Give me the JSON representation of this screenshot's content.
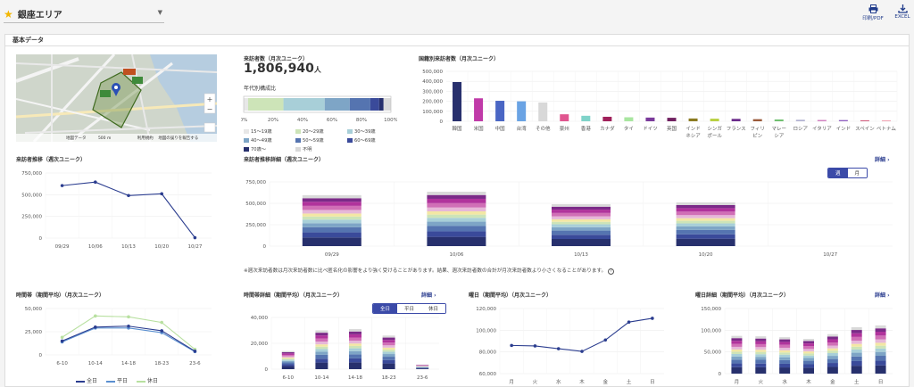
{
  "header": {
    "area": "銀座エリア",
    "print_label": "印刷/PDF",
    "excel_label": "EXCEL"
  },
  "section_title": "基本データ",
  "map": {
    "labels": [
      "地図データ",
      "500 m",
      "利用規約",
      "地図の誤りを報告する"
    ]
  },
  "visitors": {
    "label": "来訪者数（月次ユニーク）",
    "value": "1,806,940",
    "unit": "人",
    "age_title": "年代別構成比",
    "age_axis": [
      "0%",
      "20%",
      "40%",
      "60%",
      "80%",
      "100%"
    ],
    "age_segments": [
      {
        "label": "15〜19歳",
        "share": 3,
        "color": "#e7e7e7"
      },
      {
        "label": "20〜29歳",
        "share": 24,
        "color": "#cde4b8"
      },
      {
        "label": "30〜39歳",
        "share": 28,
        "color": "#a8cfd8"
      },
      {
        "label": "40〜49歳",
        "share": 17,
        "color": "#7ea5c6"
      },
      {
        "label": "50〜59歳",
        "share": 14,
        "color": "#5574b0"
      },
      {
        "label": "60〜69歳",
        "share": 6,
        "color": "#3a4a9a"
      },
      {
        "label": "70歳〜",
        "share": 3,
        "color": "#27306d"
      },
      {
        "label": "不明",
        "share": 5,
        "color": "#d9d9d9"
      }
    ]
  },
  "nationality": {
    "label": "国籍別来訪者数（月次ユニーク）",
    "y_ticks": [
      "500,000",
      "400,000",
      "300,000",
      "200,000",
      "100,000",
      "0"
    ],
    "ymax": 500000,
    "bars": [
      {
        "name": "韓国",
        "value": 393000,
        "color": "#28306d"
      },
      {
        "name": "米国",
        "value": 230000,
        "color": "#c03aa8"
      },
      {
        "name": "中国",
        "value": 205000,
        "color": "#4a66c4"
      },
      {
        "name": "台湾",
        "value": 200000,
        "color": "#6aa3e4"
      },
      {
        "name": "その他",
        "value": 188000,
        "color": "#d8d8d8"
      },
      {
        "name": "豪州",
        "value": 70000,
        "color": "#e0558f"
      },
      {
        "name": "香港",
        "value": 55000,
        "color": "#7fd3c9"
      },
      {
        "name": "カナダ",
        "value": 45000,
        "color": "#a0205a"
      },
      {
        "name": "タイ",
        "value": 40000,
        "color": "#a8e6a0"
      },
      {
        "name": "ドイツ",
        "value": 37000,
        "color": "#7a3a9a"
      },
      {
        "name": "英国",
        "value": 35000,
        "color": "#702060"
      },
      {
        "name": "インドネシア",
        "value": 28000,
        "color": "#8a7a20"
      },
      {
        "name": "シンガポール",
        "value": 26000,
        "color": "#b8d040"
      },
      {
        "name": "フランス",
        "value": 24000,
        "color": "#6a2a8a"
      },
      {
        "name": "フィリピン",
        "value": 21000,
        "color": "#9a5a3a"
      },
      {
        "name": "マレーシア",
        "value": 18000,
        "color": "#70c070"
      },
      {
        "name": "ロシア",
        "value": 15000,
        "color": "#b0b0d0"
      },
      {
        "name": "イタリア",
        "value": 13000,
        "color": "#d080c0"
      },
      {
        "name": "インド",
        "value": 12000,
        "color": "#9060c0"
      },
      {
        "name": "スペイン",
        "value": 10000,
        "color": "#d06080"
      },
      {
        "name": "ベトナム",
        "value": 9000,
        "color": "#f0a0b0"
      }
    ]
  },
  "weekly": {
    "label": "来訪者推移（週次ユニーク）",
    "y_ticks": [
      "750,000",
      "500,000",
      "250,000",
      "0"
    ],
    "ymax": 750000,
    "x": [
      "09/29",
      "10/06",
      "10/13",
      "10/20",
      "10/27"
    ],
    "values": [
      605000,
      645000,
      490000,
      510000,
      5000
    ]
  },
  "weekly_detail": {
    "label": "来訪者推移詳細（週次ユニーク）",
    "link": "詳細",
    "toggle": [
      "週",
      "月"
    ],
    "y_ticks": [
      "750,000",
      "500,000",
      "250,000",
      "0"
    ],
    "ymax": 750000,
    "x": [
      "09/29",
      "10/06",
      "10/13",
      "10/20",
      "10/27"
    ],
    "totals": [
      595000,
      635000,
      490000,
      510000,
      0
    ],
    "note": "※週次来訪者数は月次来訪者数に比べ匿名化の影響をより強く受けることがあります。結果、週次来訪者数の合計が月次来訪者数より小さくなることがあります。"
  },
  "hourly": {
    "label": "時間帯（期間平均）（月次ユニーク）",
    "y_ticks": [
      "50,000",
      "25,000",
      "0"
    ],
    "ymax": 50000,
    "x": [
      "6-10",
      "10-14",
      "14-18",
      "18-23",
      "23-6"
    ],
    "series": [
      {
        "name": "全日",
        "values": [
          15000,
          30000,
          31000,
          26000,
          4000
        ],
        "color": "#2b3d8f"
      },
      {
        "name": "平日",
        "values": [
          14000,
          29000,
          29000,
          24000,
          3500
        ],
        "color": "#5a8fd0"
      },
      {
        "name": "休日",
        "values": [
          19000,
          42000,
          41000,
          35000,
          6000
        ],
        "color": "#b8e0a0"
      }
    ]
  },
  "hourly_detail": {
    "label": "時間帯詳細（期間平均）（月次ユニーク）",
    "link": "詳細",
    "toggle": [
      "全日",
      "平日",
      "休日"
    ],
    "y_ticks": [
      "40,000",
      "20,000",
      "0"
    ],
    "ymax": 40000,
    "x": [
      "6-10",
      "10-14",
      "14-18",
      "18-23",
      "23-6"
    ],
    "totals": [
      14000,
      30000,
      31000,
      26000,
      3500
    ]
  },
  "weekday": {
    "label": "曜日（期間平均）（月次ユニーク）",
    "y_ticks": [
      "120,000",
      "100,000",
      "80,000",
      "60,000"
    ],
    "ymin": 60000,
    "ymax": 120000,
    "x": [
      "月",
      "火",
      "水",
      "木",
      "金",
      "土",
      "日"
    ],
    "values": [
      86000,
      85500,
      83000,
      80500,
      91000,
      107500,
      111000
    ]
  },
  "weekday_detail": {
    "label": "曜日詳細（期間平均）（月次ユニーク）",
    "link": "詳細",
    "y_ticks": [
      "150,000",
      "100,000",
      "50,000",
      "0"
    ],
    "ymax": 150000,
    "x": [
      "月",
      "火",
      "水",
      "木",
      "金",
      "土",
      "日"
    ],
    "totals": [
      87000,
      86000,
      84000,
      80000,
      91000,
      107000,
      111000
    ]
  }
}
